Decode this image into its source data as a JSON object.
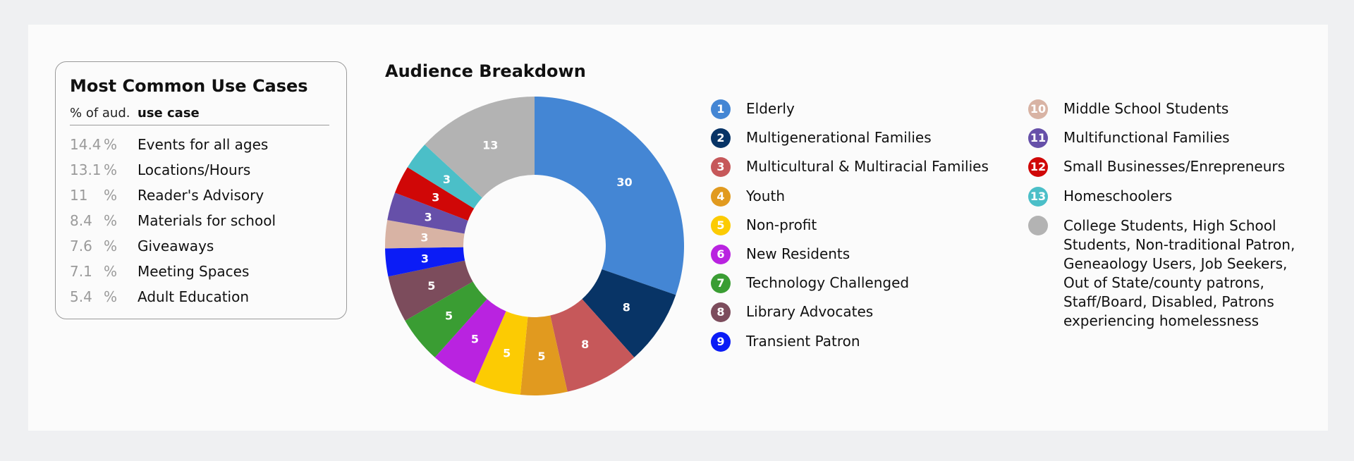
{
  "use_cases": {
    "title": "Most Common Use Cases",
    "header_pct": "% of aud.",
    "header_use": "use case",
    "rows": [
      {
        "value": "14.4",
        "unit": "%",
        "name": "Events for all ages"
      },
      {
        "value": "13.1",
        "unit": "%",
        "name": "Locations/Hours"
      },
      {
        "value": "11",
        "unit": "%",
        "name": "Reader's Advisory"
      },
      {
        "value": "8.4",
        "unit": "%",
        "name": "Materials for school"
      },
      {
        "value": "7.6",
        "unit": "%",
        "name": "Giveaways"
      },
      {
        "value": "7.1",
        "unit": "%",
        "name": "Meeting Spaces"
      },
      {
        "value": "5.4",
        "unit": "%",
        "name": "Adult Education"
      }
    ]
  },
  "chart_data": {
    "type": "pie",
    "donut": true,
    "title": "Audience Breakdown",
    "slices": [
      {
        "marker": "1",
        "label": "Elderly",
        "value": 30,
        "color": "#4486d4"
      },
      {
        "marker": "2",
        "label": "Multigenerational Families",
        "value": 8,
        "color": "#083466"
      },
      {
        "marker": "3",
        "label": "Multicultural & Multiracial Families",
        "value": 8,
        "color": "#c6585a"
      },
      {
        "marker": "4",
        "label": "Youth",
        "value": 5,
        "color": "#e19a1f"
      },
      {
        "marker": "5",
        "label": "Non-profit",
        "value": 5,
        "color": "#fccb03"
      },
      {
        "marker": "6",
        "label": "New Residents",
        "value": 5,
        "color": "#b923e0"
      },
      {
        "marker": "7",
        "label": "Technology Challenged",
        "value": 5,
        "color": "#3a9d33"
      },
      {
        "marker": "8",
        "label": "Library Advocates",
        "value": 5,
        "color": "#7c4c5c"
      },
      {
        "marker": "9",
        "label": "Transient Patron",
        "value": 3,
        "color": "#0b1cf6"
      },
      {
        "marker": "10",
        "label": "Middle School Students",
        "value": 3,
        "color": "#d8b3a4"
      },
      {
        "marker": "11",
        "label": "Multifunctional Families",
        "value": 3,
        "color": "#6650a9"
      },
      {
        "marker": "12",
        "label": "Small Businesses/Enrepreneurs",
        "value": 3,
        "color": "#d00707"
      },
      {
        "marker": "13",
        "label": "Homeschoolers",
        "value": 3,
        "color": "#4bbfc8"
      },
      {
        "marker": "",
        "label": "College Students, High School Students, Non-traditional Patron, Geneaology Users, Job Seekers, Out of State/county patrons, Staff/Board, Disabled, Patrons experiencing homelessness",
        "value": 13,
        "color": "#b3b3b3"
      }
    ]
  }
}
